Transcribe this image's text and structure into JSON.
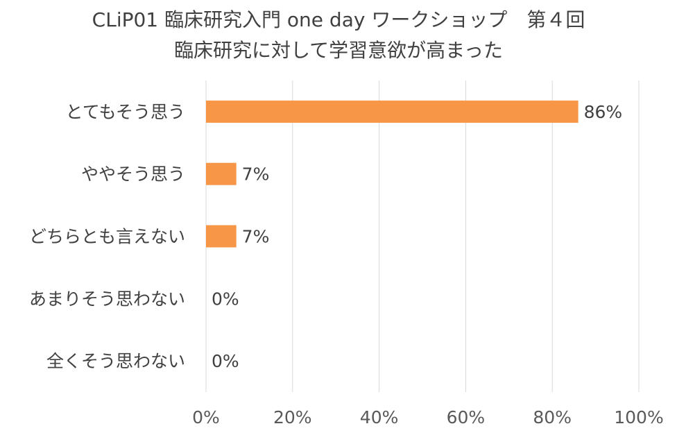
{
  "chart_data": {
    "type": "bar",
    "orientation": "horizontal",
    "title": [
      "CLiP01 臨床研究入門 one day ワークショップ　第４回",
      "臨床研究に対して学習意欲が高まった"
    ],
    "categories": [
      "とてもそう思う",
      "ややそう思う",
      "どちらとも言えない",
      "あまりそう思わない",
      "全くそう思わない"
    ],
    "values": [
      86,
      7,
      7,
      0,
      0
    ],
    "data_labels": [
      "86%",
      "7%",
      "7%",
      "0%",
      "0%"
    ],
    "xlim": [
      0,
      100
    ],
    "x_ticks": [
      0,
      20,
      40,
      60,
      80,
      100
    ],
    "x_tick_labels": [
      "0%",
      "20%",
      "40%",
      "60%",
      "80%",
      "100%"
    ],
    "xlabel": "",
    "ylabel": "",
    "grid": "vertical",
    "legend": "none",
    "bar_color": "#F79646"
  }
}
